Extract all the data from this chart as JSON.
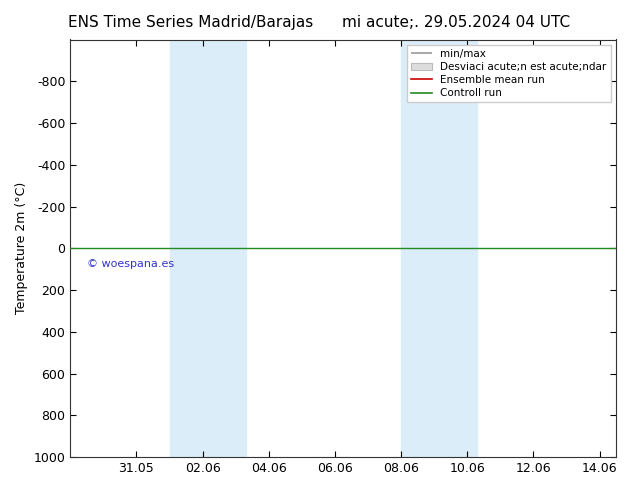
{
  "title_left": "ENS Time Series Madrid/Barajas",
  "title_right": "mi acute;. 29.05.2024 04 UTC",
  "ylabel": "Temperature 2m (°C)",
  "ylim_top": -1000,
  "ylim_bottom": 1000,
  "yticks": [
    -800,
    -600,
    -400,
    -200,
    0,
    200,
    400,
    600,
    800,
    1000
  ],
  "xtick_positions": [
    2,
    4,
    6,
    8,
    10,
    12,
    14,
    16
  ],
  "xtick_labels": [
    "31.05",
    "02.06",
    "04.06",
    "06.06",
    "08.06",
    "10.06",
    "12.06",
    "14.06"
  ],
  "xlim_left": 0.0,
  "xlim_right": 16.5,
  "band1_x1": 3.0,
  "band1_x2": 5.3,
  "band2_x1": 10.0,
  "band2_x2": 12.3,
  "band_color": "#dbedf8",
  "green_color": "#228B22",
  "red_color": "#cc0000",
  "gray_line_color": "#999999",
  "gray_fill_color": "#cccccc",
  "background_color": "#ffffff",
  "watermark": "© woespana.es",
  "watermark_color": "#3333cc",
  "legend_items": [
    "min/max",
    "Desviaci acute;n est acute;ndar",
    "Ensemble mean run",
    "Controll run"
  ],
  "font_size": 9,
  "title_fontsize": 11
}
